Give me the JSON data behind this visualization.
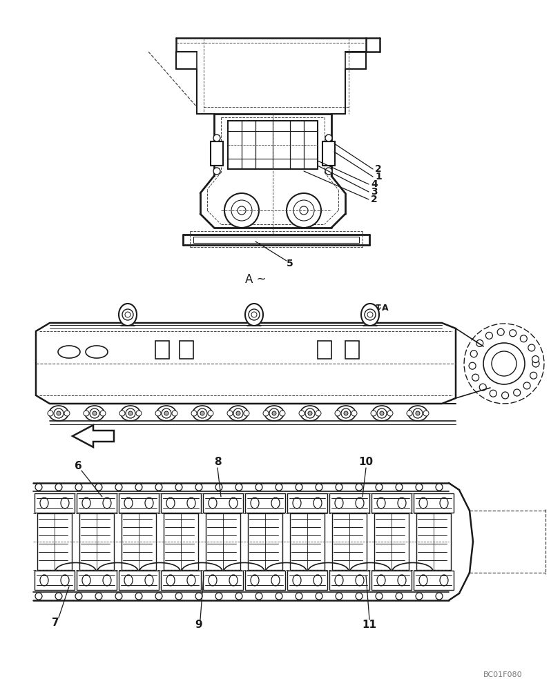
{
  "bg_color": "#ffffff",
  "line_color": "#1a1a1a",
  "gray_color": "#777777",
  "dashed_color": "#444444",
  "watermark": "BC01F080",
  "figsize": [
    8.12,
    10.0
  ],
  "dpi": 100
}
